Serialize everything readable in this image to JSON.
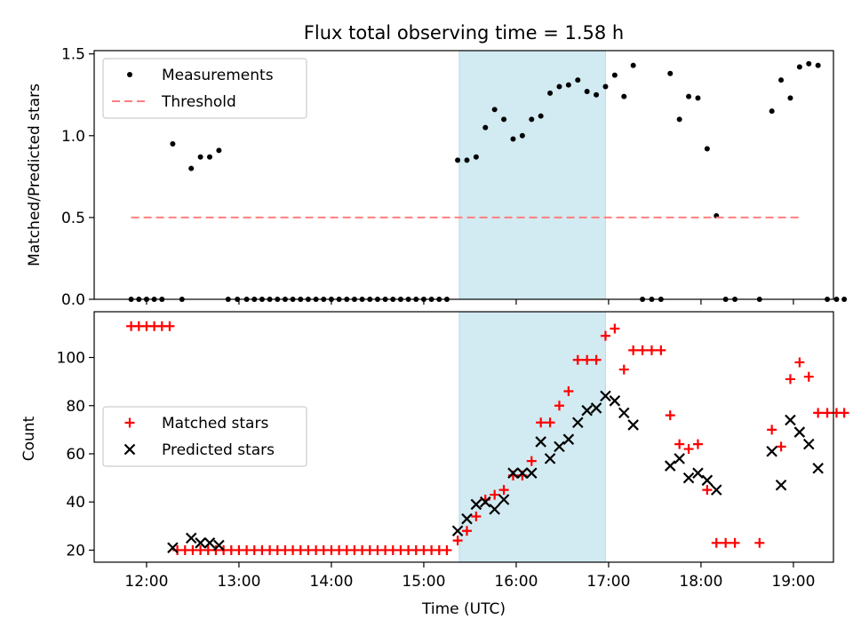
{
  "chart_data": [
    {
      "type": "scatter",
      "title": "Flux total observing time = 1.58 h",
      "xlabel": "",
      "ylabel": "Matched/Predicted stars",
      "xlim": [
        "11:26",
        "19:26"
      ],
      "ylim": [
        0,
        1.52
      ],
      "yticks": [
        "0.0",
        "0.5",
        "1.0",
        "1.5"
      ],
      "legend_position": "top-left",
      "shaded_interval": {
        "start": "15:23",
        "end": "16:58",
        "color": "#add8e6"
      },
      "series": [
        {
          "name": "Measurements",
          "color": "#000000",
          "marker": "dot",
          "points": [
            [
              "11:50",
              0
            ],
            [
              "11:55",
              0
            ],
            [
              "12:00",
              0
            ],
            [
              "12:05",
              0
            ],
            [
              "12:10",
              0
            ],
            [
              "12:17",
              0.95
            ],
            [
              "12:23",
              0
            ],
            [
              "12:29",
              0.8
            ],
            [
              "12:35",
              0.87
            ],
            [
              "12:41",
              0.87
            ],
            [
              "12:47",
              0.91
            ],
            [
              "12:53",
              0
            ],
            [
              "12:59",
              0
            ],
            [
              "13:05",
              0
            ],
            [
              "13:10",
              0
            ],
            [
              "13:15",
              0
            ],
            [
              "13:20",
              0
            ],
            [
              "13:25",
              0
            ],
            [
              "13:30",
              0
            ],
            [
              "13:35",
              0
            ],
            [
              "13:40",
              0
            ],
            [
              "13:45",
              0
            ],
            [
              "13:50",
              0
            ],
            [
              "13:55",
              0
            ],
            [
              "14:00",
              0
            ],
            [
              "14:05",
              0
            ],
            [
              "14:10",
              0
            ],
            [
              "14:15",
              0
            ],
            [
              "14:20",
              0
            ],
            [
              "14:25",
              0
            ],
            [
              "14:30",
              0
            ],
            [
              "14:35",
              0
            ],
            [
              "14:40",
              0
            ],
            [
              "14:45",
              0
            ],
            [
              "14:50",
              0
            ],
            [
              "14:55",
              0
            ],
            [
              "15:00",
              0
            ],
            [
              "15:05",
              0
            ],
            [
              "15:10",
              0
            ],
            [
              "15:15",
              0
            ],
            [
              "15:22",
              0.85
            ],
            [
              "15:28",
              0.85
            ],
            [
              "15:34",
              0.87
            ],
            [
              "15:40",
              1.05
            ],
            [
              "15:46",
              1.16
            ],
            [
              "15:52",
              1.1
            ],
            [
              "15:58",
              0.98
            ],
            [
              "16:04",
              1.0
            ],
            [
              "16:10",
              1.1
            ],
            [
              "16:16",
              1.12
            ],
            [
              "16:22",
              1.26
            ],
            [
              "16:28",
              1.3
            ],
            [
              "16:34",
              1.31
            ],
            [
              "16:40",
              1.34
            ],
            [
              "16:46",
              1.27
            ],
            [
              "16:52",
              1.25
            ],
            [
              "16:58",
              1.3
            ],
            [
              "17:04",
              1.37
            ],
            [
              "17:10",
              1.24
            ],
            [
              "17:16",
              1.43
            ],
            [
              "17:22",
              0
            ],
            [
              "17:28",
              0
            ],
            [
              "17:34",
              0
            ],
            [
              "17:40",
              1.38
            ],
            [
              "17:46",
              1.1
            ],
            [
              "17:52",
              1.24
            ],
            [
              "17:58",
              1.23
            ],
            [
              "18:04",
              0.92
            ],
            [
              "18:10",
              0.51
            ],
            [
              "18:16",
              0
            ],
            [
              "18:22",
              0
            ],
            [
              "18:38",
              0
            ],
            [
              "18:46",
              1.15
            ],
            [
              "18:52",
              1.34
            ],
            [
              "18:58",
              1.23
            ],
            [
              "19:04",
              1.42
            ],
            [
              "19:10",
              1.44
            ],
            [
              "19:16",
              1.43
            ],
            [
              "19:22",
              0
            ],
            [
              "19:28",
              0
            ],
            [
              "19:33",
              0
            ]
          ]
        },
        {
          "name": "Threshold",
          "color": "#ff7f7f",
          "style": "dashed",
          "points": [
            [
              "11:50",
              0.5
            ],
            [
              "19:05",
              0.5
            ]
          ]
        }
      ]
    },
    {
      "type": "scatter",
      "title": "",
      "xlabel": "Time (UTC)",
      "ylabel": "Count",
      "xlim": [
        "11:26",
        "19:26"
      ],
      "ylim": [
        15,
        119
      ],
      "xticks": [
        "12:00",
        "13:00",
        "14:00",
        "15:00",
        "16:00",
        "17:00",
        "18:00",
        "19:00"
      ],
      "yticks": [
        "20",
        "40",
        "60",
        "80",
        "100"
      ],
      "legend_position": "center-left",
      "shaded_interval": {
        "start": "15:23",
        "end": "16:58",
        "color": "#add8e6"
      },
      "series": [
        {
          "name": "Matched stars",
          "color": "#ff0000",
          "marker": "plus",
          "points": [
            [
              "11:50",
              113
            ],
            [
              "11:55",
              113
            ],
            [
              "12:00",
              113
            ],
            [
              "12:05",
              113
            ],
            [
              "12:10",
              113
            ],
            [
              "12:15",
              113
            ],
            [
              "12:20",
              20
            ],
            [
              "12:25",
              20
            ],
            [
              "12:30",
              20
            ],
            [
              "12:35",
              20
            ],
            [
              "12:40",
              20
            ],
            [
              "12:45",
              20
            ],
            [
              "12:50",
              20
            ],
            [
              "12:55",
              20
            ],
            [
              "13:00",
              20
            ],
            [
              "13:05",
              20
            ],
            [
              "13:10",
              20
            ],
            [
              "13:15",
              20
            ],
            [
              "13:20",
              20
            ],
            [
              "13:25",
              20
            ],
            [
              "13:30",
              20
            ],
            [
              "13:35",
              20
            ],
            [
              "13:40",
              20
            ],
            [
              "13:45",
              20
            ],
            [
              "13:50",
              20
            ],
            [
              "13:55",
              20
            ],
            [
              "14:00",
              20
            ],
            [
              "14:05",
              20
            ],
            [
              "14:10",
              20
            ],
            [
              "14:15",
              20
            ],
            [
              "14:20",
              20
            ],
            [
              "14:25",
              20
            ],
            [
              "14:30",
              20
            ],
            [
              "14:35",
              20
            ],
            [
              "14:40",
              20
            ],
            [
              "14:45",
              20
            ],
            [
              "14:50",
              20
            ],
            [
              "14:55",
              20
            ],
            [
              "15:00",
              20
            ],
            [
              "15:05",
              20
            ],
            [
              "15:10",
              20
            ],
            [
              "15:15",
              20
            ],
            [
              "15:22",
              24
            ],
            [
              "15:28",
              28
            ],
            [
              "15:34",
              34
            ],
            [
              "15:40",
              41
            ],
            [
              "15:46",
              43
            ],
            [
              "15:52",
              45
            ],
            [
              "15:58",
              51
            ],
            [
              "16:04",
              51
            ],
            [
              "16:10",
              57
            ],
            [
              "16:16",
              73
            ],
            [
              "16:22",
              73
            ],
            [
              "16:28",
              80
            ],
            [
              "16:34",
              86
            ],
            [
              "16:40",
              99
            ],
            [
              "16:46",
              99
            ],
            [
              "16:52",
              99
            ],
            [
              "16:58",
              109
            ],
            [
              "17:04",
              112
            ],
            [
              "17:10",
              95
            ],
            [
              "17:16",
              103
            ],
            [
              "17:22",
              103
            ],
            [
              "17:28",
              103
            ],
            [
              "17:34",
              103
            ],
            [
              "17:40",
              76
            ],
            [
              "17:46",
              64
            ],
            [
              "17:52",
              62
            ],
            [
              "17:58",
              64
            ],
            [
              "18:04",
              45
            ],
            [
              "18:10",
              23
            ],
            [
              "18:16",
              23
            ],
            [
              "18:22",
              23
            ],
            [
              "18:38",
              23
            ],
            [
              "18:46",
              70
            ],
            [
              "18:52",
              63
            ],
            [
              "18:58",
              91
            ],
            [
              "19:04",
              98
            ],
            [
              "19:10",
              92
            ],
            [
              "19:16",
              77
            ],
            [
              "19:22",
              77
            ],
            [
              "19:28",
              77
            ],
            [
              "19:33",
              77
            ]
          ]
        },
        {
          "name": "Predicted stars",
          "color": "#000000",
          "marker": "x",
          "points": [
            [
              "12:17",
              21
            ],
            [
              "12:29",
              25
            ],
            [
              "12:35",
              23
            ],
            [
              "12:41",
              23
            ],
            [
              "12:47",
              22
            ],
            [
              "15:22",
              28
            ],
            [
              "15:28",
              33
            ],
            [
              "15:34",
              39
            ],
            [
              "15:40",
              40
            ],
            [
              "15:46",
              37
            ],
            [
              "15:52",
              41
            ],
            [
              "15:58",
              52
            ],
            [
              "16:04",
              52
            ],
            [
              "16:10",
              52
            ],
            [
              "16:16",
              65
            ],
            [
              "16:22",
              58
            ],
            [
              "16:28",
              63
            ],
            [
              "16:34",
              66
            ],
            [
              "16:40",
              73
            ],
            [
              "16:46",
              78
            ],
            [
              "16:52",
              79
            ],
            [
              "16:58",
              84
            ],
            [
              "17:04",
              82
            ],
            [
              "17:10",
              77
            ],
            [
              "17:16",
              72
            ],
            [
              "17:40",
              55
            ],
            [
              "17:46",
              58
            ],
            [
              "17:52",
              50
            ],
            [
              "17:58",
              52
            ],
            [
              "18:04",
              49
            ],
            [
              "18:10",
              45
            ],
            [
              "18:46",
              61
            ],
            [
              "18:52",
              47
            ],
            [
              "18:58",
              74
            ],
            [
              "19:04",
              69
            ],
            [
              "19:10",
              64
            ],
            [
              "19:16",
              54
            ]
          ]
        }
      ]
    }
  ]
}
